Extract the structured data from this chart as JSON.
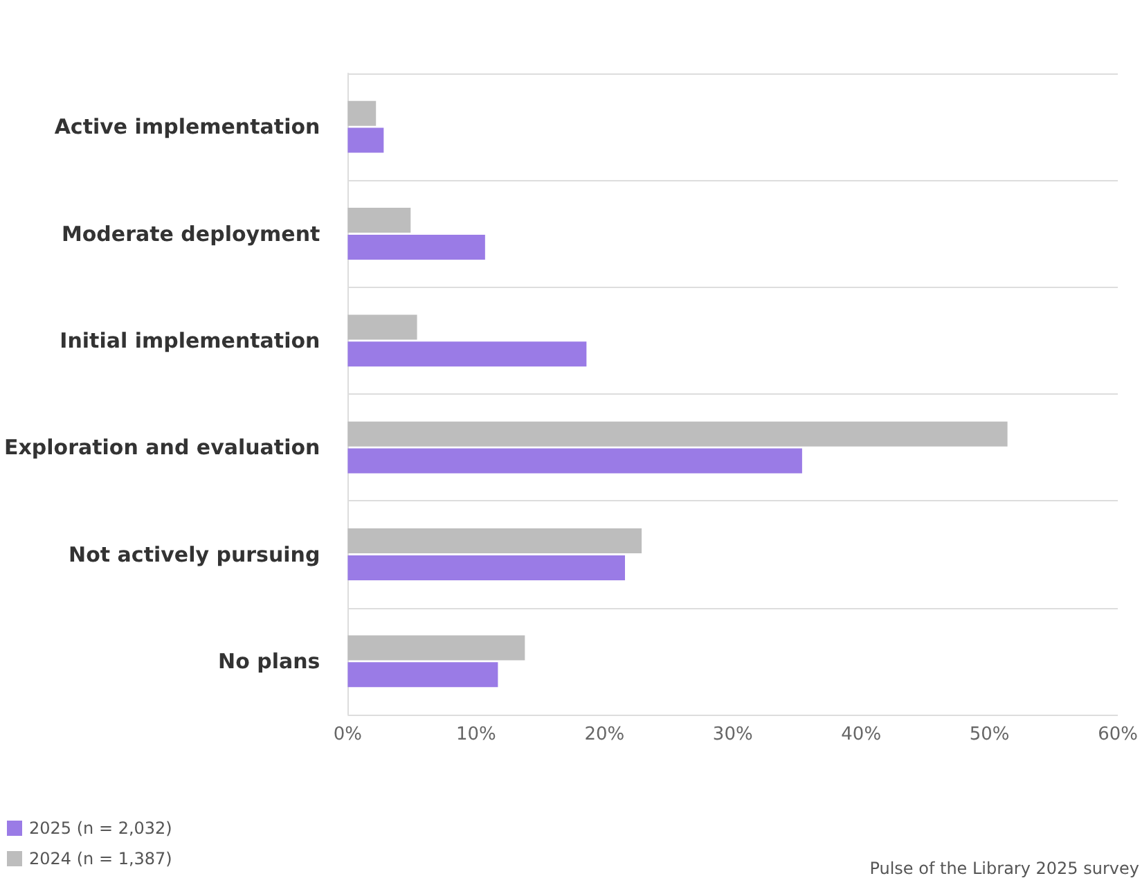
{
  "chart_data": {
    "type": "bar",
    "orientation": "horizontal",
    "categories": [
      "Active implementation",
      "Moderate deployment",
      "Initial implementation",
      "Exploration and evaluation",
      "Not actively pursuing",
      "No plans"
    ],
    "series": [
      {
        "name": "2024 (n = 1,387)",
        "color": "#bdbdbd",
        "values": [
          2.2,
          4.9,
          5.4,
          51.4,
          22.9,
          13.8
        ]
      },
      {
        "name": "2025 (n = 2,032)",
        "color": "#9a7be6",
        "values": [
          2.8,
          10.7,
          18.6,
          35.4,
          21.6,
          11.7
        ]
      }
    ],
    "xlim": [
      0,
      60
    ],
    "xticks": [
      {
        "value": 0,
        "label": "0%"
      },
      {
        "value": 10,
        "label": "10%"
      },
      {
        "value": 20,
        "label": "20%"
      },
      {
        "value": 30,
        "label": "30%"
      },
      {
        "value": 40,
        "label": "40%"
      },
      {
        "value": 50,
        "label": "50%"
      },
      {
        "value": 60,
        "label": "60%"
      }
    ],
    "grid": "y",
    "legend": "bottom left",
    "annotations": [
      "Pulse of the Library 2025 survey"
    ]
  }
}
